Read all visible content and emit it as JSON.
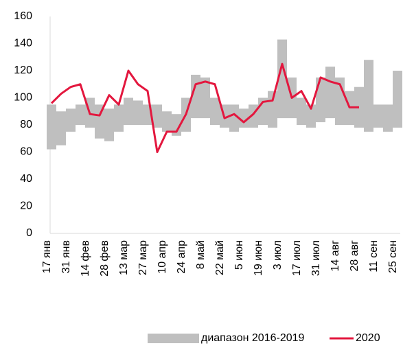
{
  "chart_data": {
    "type": "line",
    "categories": [
      "17 янв",
      null,
      "31 янв",
      null,
      "14 фев",
      null,
      "28 фев",
      null,
      "13 мар",
      null,
      "27 мар",
      null,
      "10 апр",
      null,
      "24 апр",
      null,
      "8 май",
      null,
      "22 май",
      null,
      "5 июн",
      null,
      "19 июн",
      null,
      "3 июл",
      null,
      "17 июл",
      null,
      "31 июл",
      null,
      "14 авг",
      null,
      "28 авг",
      null,
      "11 сен",
      null,
      "25 сен"
    ],
    "series": [
      {
        "name": "диапазон 2016-2019",
        "color": "#bfbfbf",
        "low": [
          62,
          65,
          75,
          80,
          78,
          70,
          68,
          75,
          80,
          80,
          80,
          78,
          75,
          72,
          75,
          85,
          85,
          80,
          78,
          75,
          78,
          78,
          80,
          78,
          85,
          85,
          80,
          78,
          82,
          85,
          80,
          80,
          78,
          75,
          78,
          75,
          78
        ],
        "high": [
          95,
          90,
          92,
          95,
          100,
          95,
          92,
          95,
          100,
          98,
          95,
          95,
          90,
          88,
          100,
          117,
          115,
          100,
          95,
          95,
          92,
          95,
          100,
          105,
          143,
          115,
          100,
          95,
          115,
          123,
          115,
          105,
          108,
          128,
          95,
          95,
          120
        ]
      },
      {
        "name": "2020",
        "color": "#e3173e",
        "values": [
          96,
          103,
          108,
          110,
          88,
          87,
          102,
          95,
          120,
          110,
          105,
          60,
          75,
          75,
          88,
          110,
          112,
          110,
          85,
          88,
          82,
          88,
          97,
          98,
          125,
          100,
          105,
          92,
          115,
          112,
          110,
          93,
          93,
          null,
          null,
          null,
          null
        ]
      }
    ],
    "ylim": [
      0,
      160
    ],
    "yticks": [
      0,
      20,
      40,
      60,
      80,
      100,
      120,
      140,
      160
    ],
    "grid": false
  }
}
